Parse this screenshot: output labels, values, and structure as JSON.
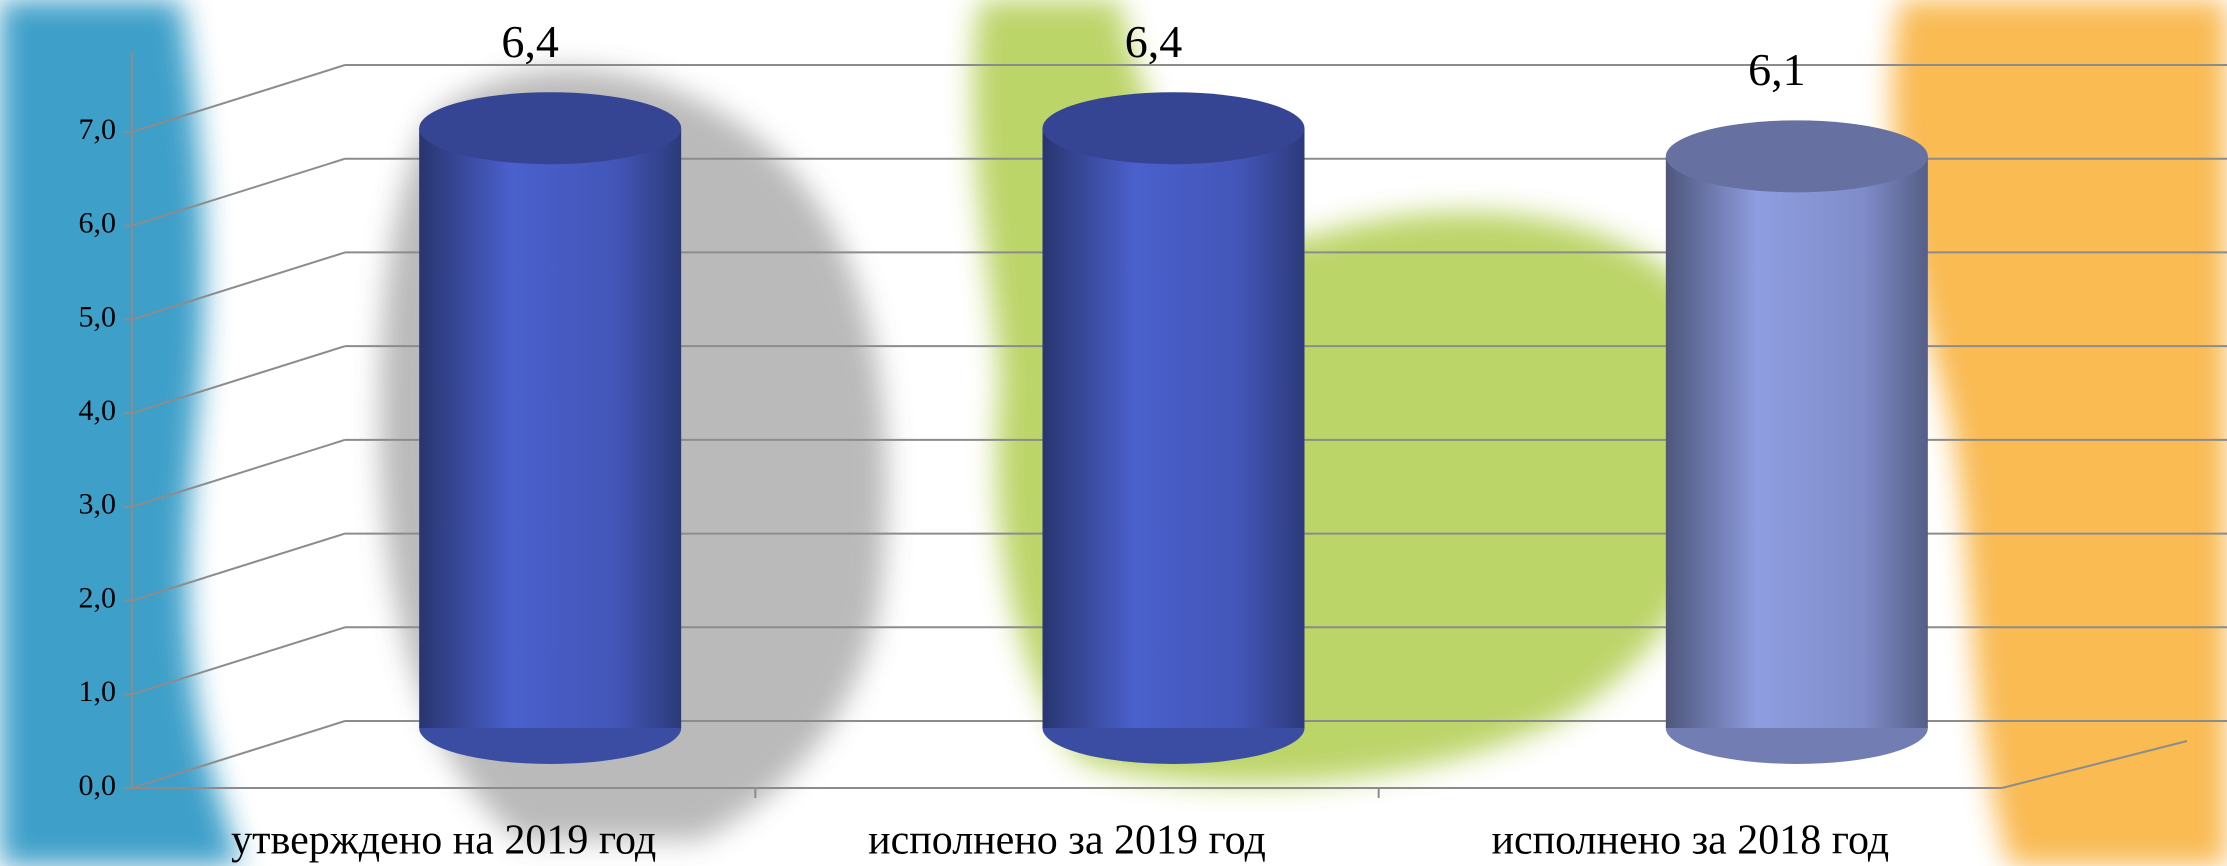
{
  "chart_data": {
    "type": "bar",
    "categories": [
      "утверждено на 2019 год",
      "исполнено за 2019 год",
      "исполнено за 2018 год"
    ],
    "values": [
      6.4,
      6.4,
      6.1
    ],
    "value_labels": [
      "6,4",
      "6,4",
      "6,1"
    ],
    "colors": [
      "#4a60cc",
      "#4a60cc",
      "#8e9de0"
    ],
    "ylim": [
      0,
      7
    ],
    "yticks": [
      {
        "value": 0,
        "label": "0,0"
      },
      {
        "value": 1,
        "label": "1,0"
      },
      {
        "value": 2,
        "label": "2,0"
      },
      {
        "value": 3,
        "label": "3,0"
      },
      {
        "value": 4,
        "label": "4,0"
      },
      {
        "value": 5,
        "label": "5,0"
      },
      {
        "value": 6,
        "label": "6,0"
      },
      {
        "value": 7,
        "label": "7,0"
      }
    ],
    "grid": true
  }
}
